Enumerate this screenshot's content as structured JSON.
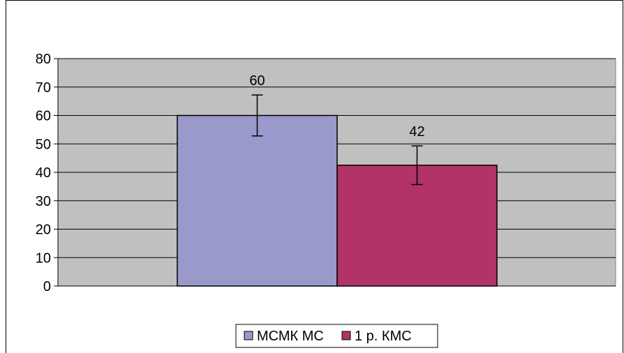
{
  "chart_data": {
    "type": "bar",
    "categories": [
      ""
    ],
    "series": [
      {
        "name": "МСМК МС",
        "values": [
          60
        ],
        "error": [
          7.2
        ],
        "color": "#9999cc",
        "data_label": "60"
      },
      {
        "name": "1 р. КМС",
        "values": [
          42.5
        ],
        "error": [
          6.8
        ],
        "color": "#b23366",
        "data_label": "42"
      }
    ],
    "ylim": [
      0,
      80
    ],
    "yticks": [
      "0",
      "10",
      "20",
      "30",
      "40",
      "50",
      "60",
      "70",
      "80"
    ],
    "grid": true,
    "plot_background": "#c0c0c0",
    "legend_position": "bottom"
  }
}
